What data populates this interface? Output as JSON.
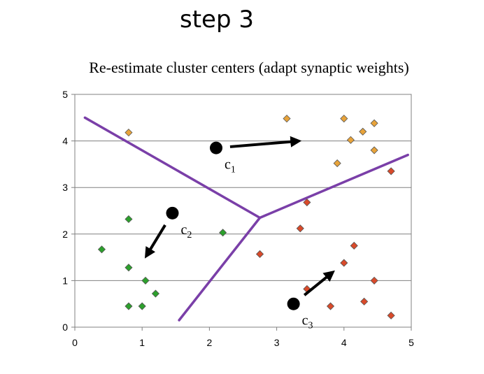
{
  "slide": {
    "title": "step 3"
  },
  "chart_data": {
    "type": "scatter",
    "title": "Re-estimate cluster centers (adapt synaptic weights)",
    "xlim": [
      0,
      5
    ],
    "ylim": [
      0,
      5
    ],
    "x_ticks": [
      "0",
      "1",
      "2",
      "3",
      "4",
      "5"
    ],
    "y_ticks": [
      "0",
      "1",
      "2",
      "3",
      "4",
      "5"
    ],
    "grid": "horizontal",
    "series": [
      {
        "color": "#e8a33a",
        "marker": "diamond",
        "points": [
          [
            0.8,
            4.18
          ],
          [
            3.15,
            4.48
          ],
          [
            4.0,
            4.48
          ],
          [
            4.28,
            4.2
          ],
          [
            4.45,
            4.38
          ],
          [
            4.1,
            4.02
          ],
          [
            4.45,
            3.8
          ],
          [
            3.9,
            3.52
          ]
        ]
      },
      {
        "color": "#2ca02c",
        "marker": "diamond",
        "points": [
          [
            0.8,
            2.32
          ],
          [
            0.4,
            1.67
          ],
          [
            0.8,
            1.28
          ],
          [
            1.05,
            1.0
          ],
          [
            1.2,
            0.72
          ],
          [
            0.8,
            0.45
          ],
          [
            1.0,
            0.45
          ],
          [
            2.2,
            2.03
          ]
        ]
      },
      {
        "color": "#d94a2a",
        "marker": "diamond",
        "points": [
          [
            4.7,
            3.35
          ],
          [
            3.45,
            2.68
          ],
          [
            3.35,
            2.12
          ],
          [
            2.75,
            1.57
          ],
          [
            4.15,
            1.75
          ],
          [
            4.0,
            1.38
          ],
          [
            4.45,
            1.0
          ],
          [
            3.45,
            0.82
          ],
          [
            3.8,
            0.45
          ],
          [
            4.3,
            0.55
          ],
          [
            4.7,
            0.25
          ]
        ]
      }
    ],
    "centers": [
      {
        "label": "c",
        "subscript": "1",
        "x": 2.1,
        "y": 3.85,
        "arrow_to": [
          3.35,
          4.0
        ]
      },
      {
        "label": "c",
        "subscript": "2",
        "x": 1.45,
        "y": 2.45,
        "arrow_to": [
          1.05,
          1.5
        ]
      },
      {
        "label": "c",
        "subscript": "3",
        "x": 3.25,
        "y": 0.5,
        "arrow_to": [
          3.85,
          1.2
        ]
      }
    ],
    "boundaries": {
      "color": "#7a3fa8",
      "lines": [
        [
          [
            0.15,
            4.5
          ],
          [
            2.75,
            2.35
          ]
        ],
        [
          [
            2.75,
            2.35
          ],
          [
            4.95,
            3.7
          ]
        ],
        [
          [
            2.75,
            2.35
          ],
          [
            1.55,
            0.15
          ]
        ]
      ]
    }
  }
}
